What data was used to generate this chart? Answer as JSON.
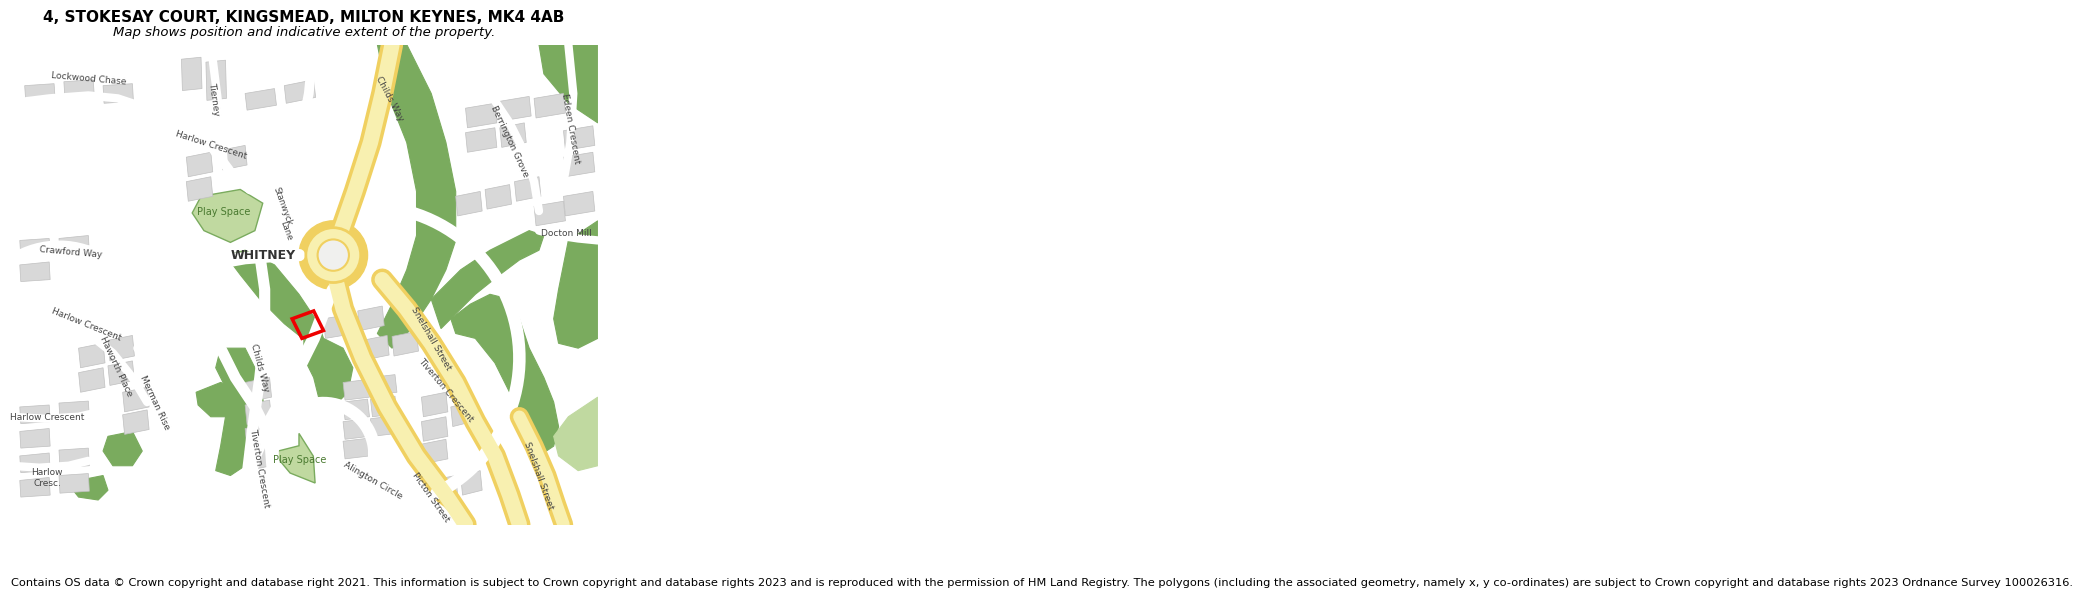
{
  "title_line1": "4, STOKESAY COURT, KINGSMEAD, MILTON KEYNES, MK4 4AB",
  "title_line2": "Map shows position and indicative extent of the property.",
  "footer_text": "Contains OS data © Crown copyright and database right 2021. This information is subject to Crown copyright and database rights 2023 and is reproduced with the permission of HM Land Registry. The polygons (including the associated geometry, namely x, y co-ordinates) are subject to Crown copyright and database rights 2023 Ordnance Survey 100026316.",
  "bg_color": "#ffffff",
  "map_bg": "#f0f0ee",
  "road_color": "#ffffff",
  "major_road_yellow": "#f0d060",
  "major_road_fill": "#f8f0b0",
  "green_color": "#7aab5e",
  "light_green_color": "#c0d9a0",
  "building_color": "#d8d8d8",
  "building_outline": "#c0c0c0",
  "street_label_color": "#555555",
  "property_color": "#ee0000",
  "title_fontsize": 11,
  "subtitle_fontsize": 9.5,
  "footer_fontsize": 8.2
}
